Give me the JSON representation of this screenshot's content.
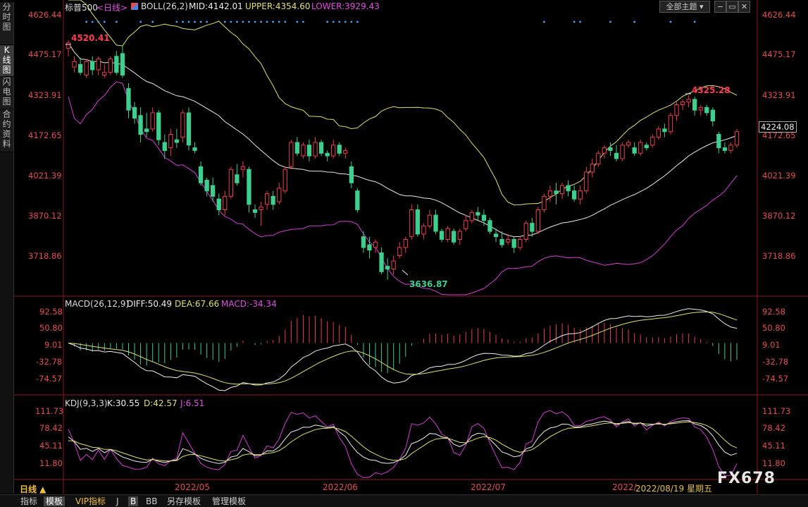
{
  "side_tabs": [
    {
      "label": "分时图",
      "active": false
    },
    {
      "label": "K线图",
      "active": true
    },
    {
      "label": "闪电图",
      "active": false
    },
    {
      "label": "合约资料",
      "active": false
    }
  ],
  "header": {
    "symbol": "标普500",
    "period": "<日线>",
    "boll_name": "BOLL(26,2)",
    "mid": "MID:4142.01",
    "upper": "UPPER:4354.60",
    "lower": "LOWER:3929.43",
    "theme_button": "全部主题",
    "window_buttons": [
      "−",
      "▭",
      "✕"
    ]
  },
  "price_axis": {
    "ticks": [
      "4626.44",
      "4475.17",
      "4323.91",
      "4172.65",
      "4021.39",
      "3870.12",
      "3718.86"
    ],
    "current_price": "4224.08",
    "annot_high": "4520.41",
    "annot_low": "3636.87",
    "annot_peak": "4325.28"
  },
  "macd": {
    "title": "MACD(26,12,9)",
    "diff": "DIFF:50.49",
    "dea": "DEA:67.66",
    "macd": "MACD:-34.34",
    "ticks": [
      "92.58",
      "50.80",
      "9.01",
      "-32.78",
      "-74.57"
    ]
  },
  "kdj": {
    "title": "KDJ(9,3,3)",
    "k": "K:30.55",
    "d": "D:42.57",
    "j": "J:6.51",
    "ticks": [
      "111.73",
      "78.42",
      "45.11",
      "11.80"
    ]
  },
  "date_axis": {
    "period_button": "日线 ▲",
    "labels": [
      "2022/05",
      "2022/06",
      "2022/07",
      "2022/"
    ],
    "cursor_date": "2022/08/19 星期五"
  },
  "bottom_tabs": [
    {
      "label": "指标",
      "active": false
    },
    {
      "label": "模板",
      "active": true
    },
    {
      "label": "VIP指标",
      "active": false
    },
    {
      "label": "J",
      "active": false
    },
    {
      "label": "B",
      "active": true
    },
    {
      "label": "BB",
      "active": false
    },
    {
      "label": "另存模板",
      "active": false
    },
    {
      "label": "管理模板",
      "active": false
    }
  ],
  "watermark": "FX678",
  "colors": {
    "up": "#e8414b",
    "down": "#3ecf8e",
    "mid": "#e8e8e8",
    "upper": "#e0e070",
    "lower": "#d040d0",
    "axis_text": "#e05050"
  },
  "chart_data": {
    "type": "candlestick",
    "title": "标普500 <日线>",
    "x_labels": [
      "2022/05",
      "2022/06",
      "2022/07",
      "2022/"
    ],
    "price_ylim": [
      3636.87,
      4626.44
    ],
    "candles": [
      [
        4500,
        4530,
        4470,
        4520
      ],
      [
        4430,
        4470,
        4410,
        4450
      ],
      [
        4440,
        4465,
        4400,
        4410
      ],
      [
        4400,
        4460,
        4390,
        4450
      ],
      [
        4450,
        4470,
        4400,
        4420
      ],
      [
        4420,
        4470,
        4400,
        4460
      ],
      [
        4400,
        4440,
        4390,
        4410
      ],
      [
        4410,
        4470,
        4400,
        4460
      ],
      [
        4470,
        4490,
        4400,
        4410
      ],
      [
        4480,
        4510,
        4390,
        4400
      ],
      [
        4350,
        4370,
        4240,
        4270
      ],
      [
        4280,
        4300,
        4220,
        4240
      ],
      [
        4250,
        4280,
        4150,
        4180
      ],
      [
        4200,
        4260,
        4170,
        4190
      ],
      [
        4200,
        4280,
        4190,
        4260
      ],
      [
        4260,
        4270,
        4140,
        4160
      ],
      [
        4150,
        4180,
        4090,
        4120
      ],
      [
        4130,
        4200,
        4100,
        4180
      ],
      [
        4160,
        4200,
        4130,
        4150
      ],
      [
        4170,
        4270,
        4150,
        4260
      ],
      [
        4260,
        4280,
        4120,
        4140
      ],
      [
        4130,
        4150,
        4110,
        4120
      ],
      [
        4060,
        4080,
        3990,
        4000
      ],
      [
        4010,
        4020,
        3950,
        3970
      ],
      [
        3990,
        4020,
        3930,
        3950
      ],
      [
        3940,
        3960,
        3880,
        3900
      ],
      [
        3900,
        3970,
        3880,
        3950
      ],
      [
        3950,
        4060,
        3940,
        4050
      ],
      [
        4030,
        4070,
        3990,
        4000
      ],
      [
        4050,
        4080,
        4020,
        4060
      ],
      [
        4050,
        4060,
        3890,
        3920
      ],
      [
        3900,
        3920,
        3870,
        3890
      ],
      [
        3900,
        3930,
        3840,
        3910
      ],
      [
        3920,
        3970,
        3900,
        3960
      ],
      [
        3950,
        3970,
        3900,
        3920
      ],
      [
        3930,
        4000,
        3920,
        3980
      ],
      [
        3970,
        4060,
        3960,
        4050
      ],
      [
        4060,
        4160,
        4050,
        4150
      ],
      [
        4150,
        4170,
        4100,
        4110
      ],
      [
        4100,
        4150,
        4090,
        4140
      ],
      [
        4140,
        4160,
        4080,
        4100
      ],
      [
        4100,
        4170,
        4090,
        4150
      ],
      [
        4150,
        4160,
        4100,
        4110
      ],
      [
        4110,
        4120,
        4080,
        4100
      ],
      [
        4100,
        4160,
        4090,
        4140
      ],
      [
        4140,
        4150,
        4100,
        4110
      ],
      [
        4110,
        4130,
        4090,
        4120
      ],
      [
        4060,
        4080,
        3980,
        4000
      ],
      [
        3970,
        3980,
        3890,
        3900
      ],
      [
        3800,
        3820,
        3740,
        3760
      ],
      [
        3770,
        3800,
        3720,
        3750
      ],
      [
        3760,
        3790,
        3740,
        3780
      ],
      [
        3740,
        3760,
        3660,
        3670
      ],
      [
        3690,
        3720,
        3640,
        3680
      ],
      [
        3680,
        3730,
        3660,
        3710
      ],
      [
        3730,
        3780,
        3720,
        3760
      ],
      [
        3760,
        3800,
        3740,
        3790
      ],
      [
        3800,
        3920,
        3790,
        3900
      ],
      [
        3900,
        3920,
        3800,
        3810
      ],
      [
        3810,
        3850,
        3790,
        3840
      ],
      [
        3840,
        3900,
        3830,
        3880
      ],
      [
        3880,
        3900,
        3810,
        3820
      ],
      [
        3820,
        3830,
        3780,
        3790
      ],
      [
        3790,
        3840,
        3780,
        3830
      ],
      [
        3820,
        3830,
        3770,
        3780
      ],
      [
        3790,
        3830,
        3770,
        3820
      ],
      [
        3830,
        3880,
        3820,
        3860
      ],
      [
        3860,
        3900,
        3850,
        3890
      ],
      [
        3890,
        3910,
        3860,
        3880
      ],
      [
        3880,
        3900,
        3840,
        3860
      ],
      [
        3860,
        3870,
        3810,
        3820
      ],
      [
        3810,
        3830,
        3780,
        3800
      ],
      [
        3790,
        3820,
        3760,
        3770
      ],
      [
        3780,
        3810,
        3770,
        3790
      ],
      [
        3790,
        3800,
        3740,
        3760
      ],
      [
        3760,
        3800,
        3750,
        3790
      ],
      [
        3790,
        3860,
        3780,
        3850
      ],
      [
        3850,
        3870,
        3800,
        3820
      ],
      [
        3820,
        3910,
        3810,
        3900
      ],
      [
        3900,
        3960,
        3890,
        3950
      ],
      [
        3950,
        3990,
        3930,
        3970
      ],
      [
        3970,
        4000,
        3920,
        3960
      ],
      [
        3960,
        4000,
        3940,
        3990
      ],
      [
        3990,
        4010,
        3950,
        3970
      ],
      [
        3970,
        3990,
        3930,
        3940
      ],
      [
        3940,
        3990,
        3920,
        3970
      ],
      [
        3970,
        4060,
        3960,
        4040
      ],
      [
        4040,
        4090,
        4020,
        4070
      ],
      [
        4070,
        4120,
        4060,
        4110
      ],
      [
        4110,
        4140,
        4090,
        4130
      ],
      [
        4130,
        4150,
        4100,
        4120
      ],
      [
        4110,
        4140,
        4080,
        4090
      ],
      [
        4090,
        4150,
        4080,
        4140
      ],
      [
        4140,
        4160,
        4130,
        4150
      ],
      [
        4130,
        4150,
        4100,
        4110
      ],
      [
        4110,
        4160,
        4100,
        4150
      ],
      [
        4140,
        4150,
        4120,
        4130
      ],
      [
        4140,
        4180,
        4130,
        4170
      ],
      [
        4170,
        4210,
        4160,
        4200
      ],
      [
        4200,
        4220,
        4170,
        4190
      ],
      [
        4190,
        4260,
        4180,
        4250
      ],
      [
        4250,
        4300,
        4230,
        4290
      ],
      [
        4290,
        4310,
        4270,
        4300
      ],
      [
        4300,
        4325,
        4280,
        4310
      ],
      [
        4310,
        4320,
        4250,
        4270
      ],
      [
        4270,
        4290,
        4250,
        4280
      ],
      [
        4280,
        4290,
        4250,
        4260
      ],
      [
        4270,
        4280,
        4210,
        4230
      ],
      [
        4180,
        4190,
        4110,
        4130
      ],
      [
        4130,
        4150,
        4110,
        4120
      ],
      [
        4120,
        4150,
        4110,
        4140
      ],
      [
        4140,
        4200,
        4130,
        4190
      ]
    ]
  }
}
